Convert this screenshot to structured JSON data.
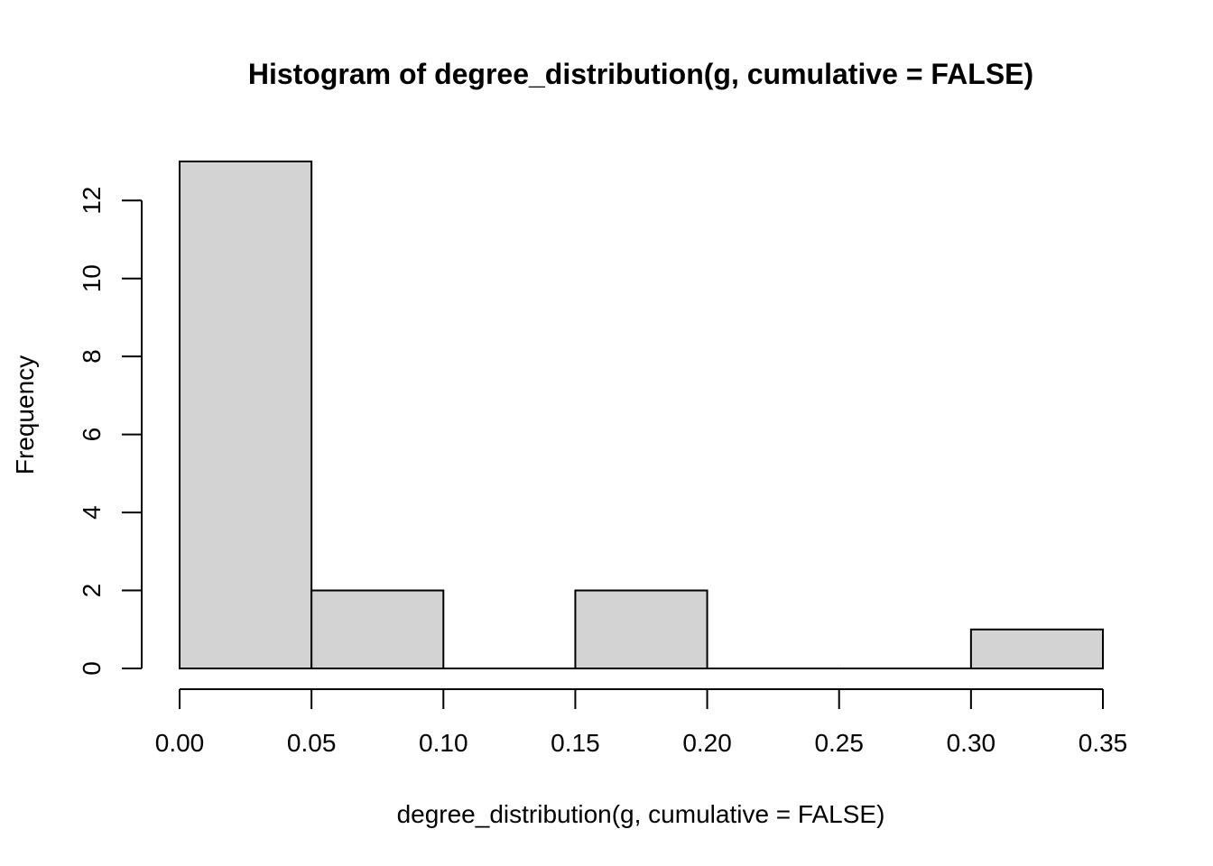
{
  "chart_data": {
    "type": "bar",
    "title": "Histogram of degree_distribution(g, cumulative = FALSE)",
    "xlabel": "degree_distribution(g, cumulative = FALSE)",
    "ylabel": "Frequency",
    "bins": [
      {
        "start": 0.0,
        "end": 0.05,
        "count": 13
      },
      {
        "start": 0.05,
        "end": 0.1,
        "count": 2
      },
      {
        "start": 0.1,
        "end": 0.15,
        "count": 0
      },
      {
        "start": 0.15,
        "end": 0.2,
        "count": 2
      },
      {
        "start": 0.2,
        "end": 0.25,
        "count": 0
      },
      {
        "start": 0.25,
        "end": 0.3,
        "count": 0
      },
      {
        "start": 0.3,
        "end": 0.35,
        "count": 1
      }
    ],
    "xlim": [
      0,
      0.35
    ],
    "ylim": [
      0,
      13
    ],
    "x_ticks": [
      "0.00",
      "0.05",
      "0.10",
      "0.15",
      "0.20",
      "0.25",
      "0.30",
      "0.35"
    ],
    "x_tick_values": [
      0,
      0.05,
      0.1,
      0.15,
      0.2,
      0.25,
      0.3,
      0.35
    ],
    "y_ticks": [
      "0",
      "2",
      "4",
      "6",
      "8",
      "10",
      "12"
    ],
    "y_tick_values": [
      0,
      2,
      4,
      6,
      8,
      10,
      12
    ],
    "bar_fill": "#d3d3d3",
    "bar_stroke": "#000000",
    "grid": false,
    "legend": "none"
  }
}
